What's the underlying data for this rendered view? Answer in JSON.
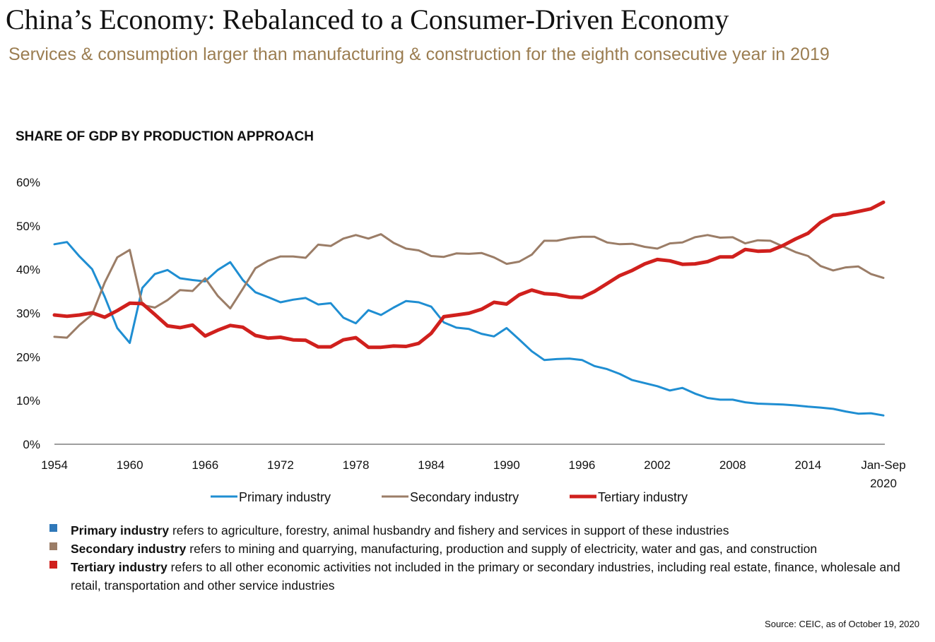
{
  "title": "China’s Economy: Rebalanced to a Consumer-Driven Economy",
  "subtitle": "Services & consumption larger than manufacturing & construction for the eighth consecutive year in 2019",
  "chart_heading": "SHARE OF GDP BY PRODUCTION APPROACH",
  "notes": [
    {
      "term": "Primary industry",
      "text": " refers to agriculture, forestry, animal husbandry and fishery and services in support of these industries",
      "color": "#2f78b9"
    },
    {
      "term": "Secondary industry",
      "text": " refers to mining and quarrying, manufacturing, production and supply of electricity, water and gas, and construction",
      "color": "#9b7d67"
    },
    {
      "term": "Tertiary industry",
      "text": " refers to all other economic activities not included in the primary or secondary industries, including real estate, finance, wholesale and retail, transportation and other service industries",
      "color": "#d0201d"
    }
  ],
  "source": "Source: CEIC, as of October 19, 2020",
  "chart_data": {
    "type": "line",
    "title": "SHARE OF GDP BY PRODUCTION APPROACH",
    "xlabel": "",
    "ylabel": "",
    "ylim": [
      0,
      60
    ],
    "yticks": [
      "0%",
      "10%",
      "20%",
      "30%",
      "40%",
      "50%",
      "60%"
    ],
    "xticks": [
      "1954",
      "1960",
      "1966",
      "1972",
      "1978",
      "1984",
      "1990",
      "1996",
      "2002",
      "2008",
      "2014",
      "Jan-Sep 2020"
    ],
    "grid": false,
    "legend": "bottom",
    "x": [
      "1954",
      "1955",
      "1956",
      "1957",
      "1958",
      "1959",
      "1960",
      "1961",
      "1962",
      "1963",
      "1964",
      "1965",
      "1966",
      "1967",
      "1968",
      "1969",
      "1970",
      "1971",
      "1972",
      "1973",
      "1974",
      "1975",
      "1976",
      "1977",
      "1978",
      "1979",
      "1980",
      "1981",
      "1982",
      "1983",
      "1984",
      "1985",
      "1986",
      "1987",
      "1988",
      "1989",
      "1990",
      "1991",
      "1992",
      "1993",
      "1994",
      "1995",
      "1996",
      "1997",
      "1998",
      "1999",
      "2000",
      "2001",
      "2002",
      "2003",
      "2004",
      "2005",
      "2006",
      "2007",
      "2008",
      "2009",
      "2010",
      "2011",
      "2012",
      "2013",
      "2014",
      "2015",
      "2016",
      "2017",
      "2018",
      "2019",
      "Jan-Sep 2020"
    ],
    "series": [
      {
        "name": "Primary industry",
        "color": "#1f8ed2",
        "width": 3,
        "values": [
          45.8,
          46.3,
          43.0,
          40.1,
          33.8,
          26.6,
          23.2,
          35.8,
          39.0,
          39.9,
          38.0,
          37.6,
          37.3,
          39.9,
          41.7,
          37.6,
          34.8,
          33.7,
          32.5,
          33.1,
          33.5,
          32.0,
          32.3,
          29.0,
          27.7,
          30.7,
          29.6,
          31.3,
          32.8,
          32.5,
          31.5,
          27.9,
          26.7,
          26.4,
          25.3,
          24.7,
          26.6,
          24.0,
          21.3,
          19.3,
          19.5,
          19.6,
          19.3,
          17.9,
          17.2,
          16.1,
          14.7,
          14.0,
          13.3,
          12.3,
          12.9,
          11.6,
          10.6,
          10.2,
          10.2,
          9.6,
          9.3,
          9.2,
          9.1,
          8.9,
          8.6,
          8.4,
          8.1,
          7.5,
          7.0,
          7.1,
          6.6
        ]
      },
      {
        "name": "Secondary industry",
        "color": "#9b7d67",
        "width": 3,
        "values": [
          24.6,
          24.4,
          27.3,
          29.7,
          37.0,
          42.8,
          44.5,
          31.9,
          31.3,
          33.0,
          35.3,
          35.1,
          38.0,
          34.0,
          31.1,
          35.6,
          40.3,
          42.0,
          43.0,
          43.0,
          42.7,
          45.7,
          45.4,
          47.1,
          47.9,
          47.1,
          48.1,
          46.1,
          44.8,
          44.4,
          43.1,
          42.9,
          43.7,
          43.6,
          43.8,
          42.8,
          41.3,
          41.8,
          43.4,
          46.6,
          46.6,
          47.2,
          47.5,
          47.5,
          46.2,
          45.8,
          45.9,
          45.2,
          44.8,
          46.0,
          46.2,
          47.4,
          47.9,
          47.3,
          47.4,
          46.0,
          46.7,
          46.6,
          45.3,
          44.0,
          43.1,
          40.8,
          39.8,
          40.5,
          40.7,
          39.0,
          38.1
        ]
      },
      {
        "name": "Tertiary industry",
        "color": "#d0201d",
        "width": 5,
        "values": [
          29.6,
          29.3,
          29.6,
          30.1,
          29.1,
          30.6,
          32.3,
          32.2,
          29.7,
          27.1,
          26.7,
          27.3,
          24.8,
          26.1,
          27.2,
          26.8,
          24.9,
          24.3,
          24.5,
          23.9,
          23.8,
          22.3,
          22.3,
          23.9,
          24.4,
          22.2,
          22.2,
          22.5,
          22.4,
          23.1,
          25.4,
          29.2,
          29.6,
          30.0,
          30.9,
          32.5,
          32.1,
          34.2,
          35.3,
          34.5,
          34.3,
          33.7,
          33.6,
          35.0,
          36.8,
          38.6,
          39.8,
          41.3,
          42.3,
          42.0,
          41.2,
          41.3,
          41.8,
          42.9,
          42.9,
          44.6,
          44.2,
          44.3,
          45.5,
          47.0,
          48.3,
          50.8,
          52.4,
          52.7,
          53.3,
          53.9,
          55.4
        ]
      }
    ]
  }
}
